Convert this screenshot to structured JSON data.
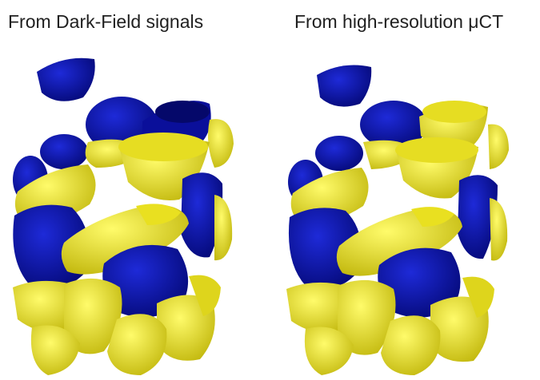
{
  "panels": [
    {
      "title": "From Dark-Field signals"
    },
    {
      "title": "From high-resolution μCT"
    }
  ],
  "colors": {
    "blue": "#0a0fb4",
    "blue_dark": "#050a6e",
    "yellow": "#f4ec1c",
    "yellow_dark": "#b9b014",
    "background": "#ffffff"
  }
}
